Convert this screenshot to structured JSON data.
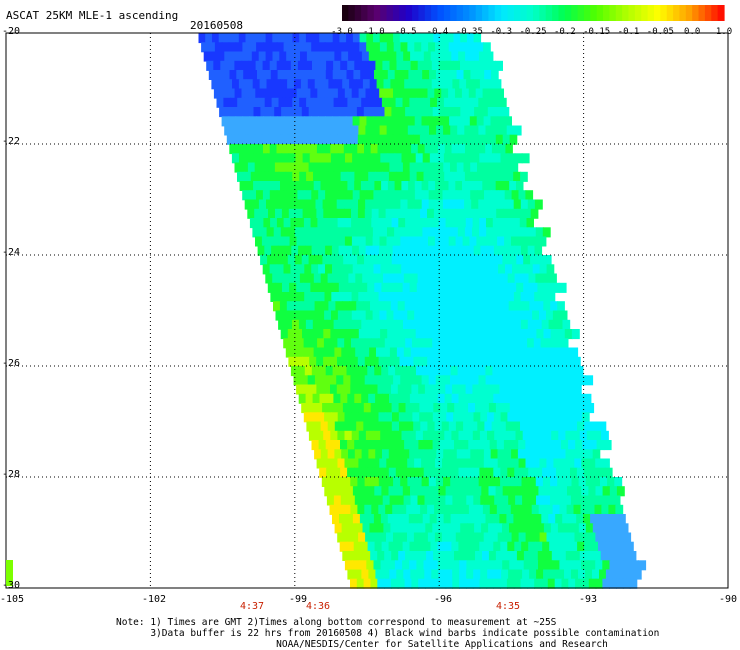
{
  "title": "ASCAT 25KM MLE-1 ascending",
  "date": "20160508",
  "colorbar": {
    "labels": [
      "-3.0",
      "-1.0",
      "-0.5",
      "-0.4",
      "-0.35",
      "-0.3",
      "-0.25",
      "-0.2",
      "-0.15",
      "-0.1",
      "-0.05",
      "0.0",
      "1.0"
    ],
    "colors": [
      "#1a0010",
      "#5a006e",
      "#2000c8",
      "#0050ff",
      "#0090ff",
      "#00e8ff",
      "#00ffc8",
      "#00ff50",
      "#50ff00",
      "#b0ff00",
      "#ffff00",
      "#ffa000",
      "#ff1000"
    ]
  },
  "axes": {
    "lat_labels": [
      "-20",
      "-22",
      "-24",
      "-26",
      "-28",
      "-30"
    ],
    "lon_labels": [
      "-105",
      "-102",
      "-99",
      "-96",
      "-93",
      "-90"
    ]
  },
  "times": [
    {
      "label": "4:37",
      "lon": -100.0
    },
    {
      "label": "4:36",
      "lon": -98.5
    },
    {
      "label": "4:35",
      "lon": -94.6
    }
  ],
  "notes": [
    "Note: 1) Times are GMT 2)Times along bottom correspond to measurement at ~25S",
    "      3)Data buffer is 22 hrs from 20160508 4) Black wind barbs indicate possible contamination",
    "                            NOAA/NESDIS/Center for Satellite Applications and Research"
  ],
  "map_data": {
    "lon_range": [
      -105,
      -90
    ],
    "lat_range": [
      -30,
      -20
    ],
    "swath": {
      "top_left_lon": -101.0,
      "top_right_lon": -95.0,
      "bottom_left_lon": -97.8,
      "bottom_right_lon": -91.7
    }
  }
}
